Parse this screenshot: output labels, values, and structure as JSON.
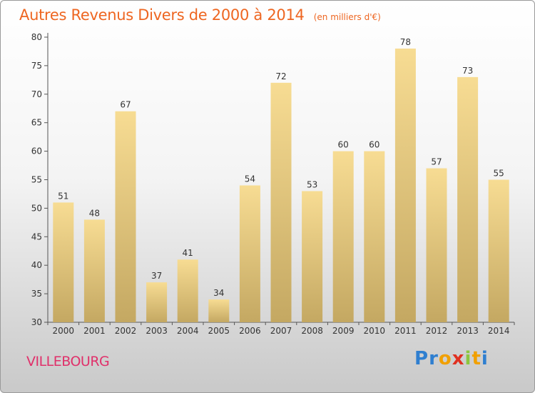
{
  "chart_data": {
    "type": "bar",
    "title": "Autres Revenus Divers de 2000 à 2014",
    "subtitle": "(en milliers d'€)",
    "categories": [
      "2000",
      "2001",
      "2002",
      "2003",
      "2004",
      "2005",
      "2006",
      "2007",
      "2008",
      "2009",
      "2010",
      "2011",
      "2012",
      "2013",
      "2014"
    ],
    "values": [
      51,
      48,
      67,
      37,
      41,
      34,
      54,
      72,
      53,
      60,
      60,
      78,
      57,
      73,
      55
    ],
    "ylim": [
      30,
      80
    ],
    "yticks": [
      30,
      35,
      40,
      45,
      50,
      55,
      60,
      65,
      70,
      75,
      80
    ],
    "grid": false,
    "bar_color_top": "#f7dc93",
    "bar_color_bottom": "#c4a862"
  },
  "footer": {
    "town": "VILLEBOURG",
    "logo_letters": [
      {
        "ch": "P",
        "color": "#2f7fd0"
      },
      {
        "ch": "r",
        "color": "#2f7fd0"
      },
      {
        "ch": "o",
        "color": "#f1a000"
      },
      {
        "ch": "x",
        "color": "#e03020"
      },
      {
        "ch": "i",
        "color": "#8cc63e"
      },
      {
        "ch": "t",
        "color": "#f1a000"
      },
      {
        "ch": "i",
        "color": "#2f7fd0"
      }
    ]
  }
}
